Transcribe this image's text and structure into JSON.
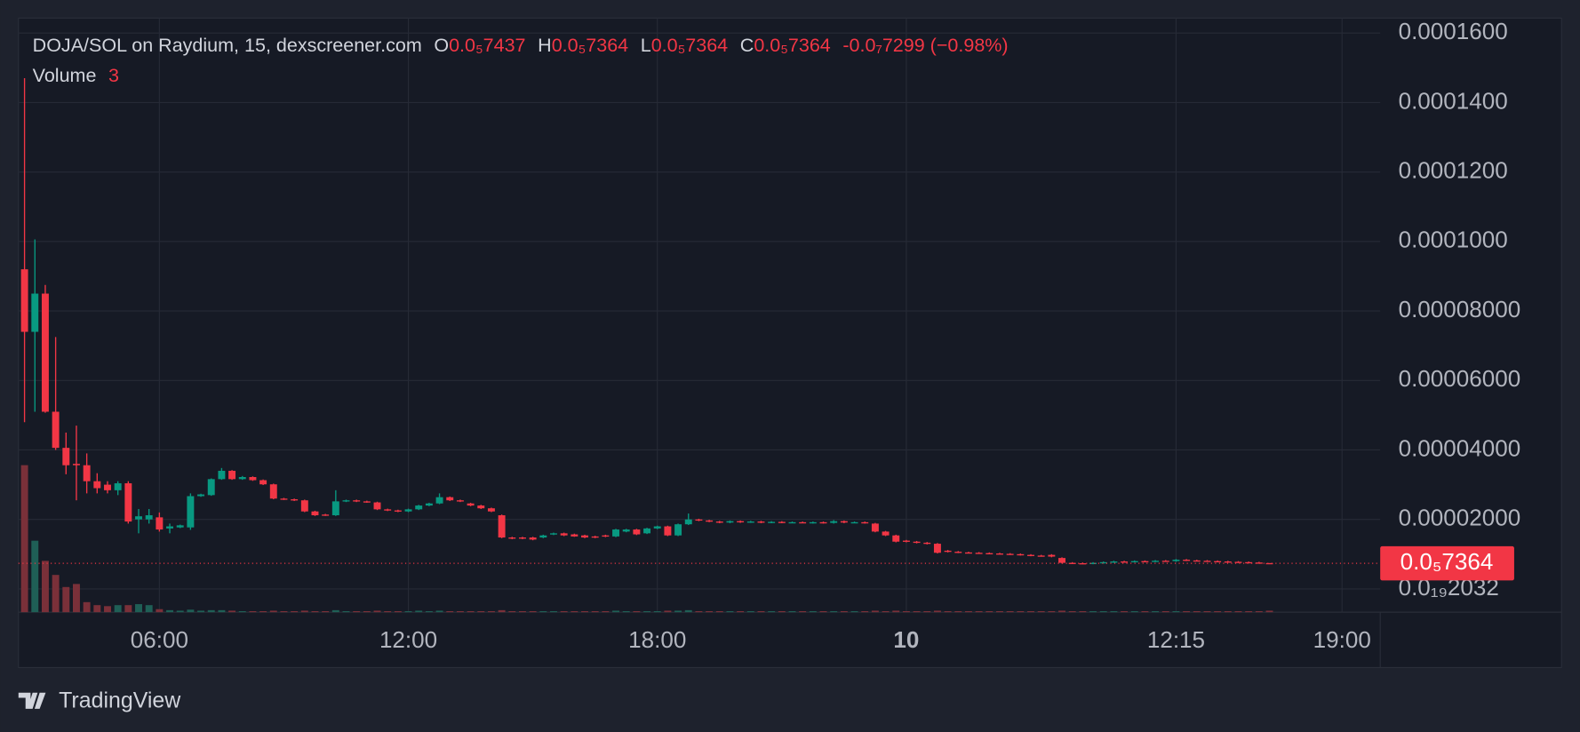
{
  "chart_data": {
    "type": "candlestick",
    "legend": {
      "symbol": "DOJA/SOL on Raydium, 15, dexscreener.com",
      "open_label": "O",
      "open": "0.0₅7437",
      "high_label": "H",
      "high": "0.0₅7364",
      "low_label": "L",
      "low": "0.0₅7364",
      "close_label": "C",
      "close": "0.0₅7364",
      "change": "-0.0₇7299 (−0.98%)"
    },
    "volume_label": "Volume",
    "brand": "TradingView",
    "up_color": "#089981",
    "down_color": "#f23645",
    "up_volume_color": "#1f5f56",
    "down_volume_color": "#7a3039",
    "grid": true,
    "ylim": [
      -6.7e-06,
      0.0001643
    ],
    "yticks": [
      {
        "value": 0.00016,
        "label": "0.0001600"
      },
      {
        "value": 0.00014,
        "label": "0.0001400"
      },
      {
        "value": 0.00012,
        "label": "0.0001200"
      },
      {
        "value": 0.0001,
        "label": "0.0001000"
      },
      {
        "value": 8e-05,
        "label": "0.00008000"
      },
      {
        "value": 6e-05,
        "label": "0.00006000"
      },
      {
        "value": 4e-05,
        "label": "0.00004000"
      },
      {
        "value": 2e-05,
        "label": "0.00002000"
      },
      {
        "value": 2.032e-20,
        "label": "0.0₁₉2032"
      }
    ],
    "last_price": {
      "value": 7.364e-06,
      "label": "0.0₅7364"
    },
    "categories": [
      null,
      null,
      null,
      null,
      null,
      null,
      null,
      null,
      null,
      null,
      null,
      null,
      null,
      "06:00",
      null,
      null,
      null,
      null,
      null,
      null,
      null,
      null,
      null,
      null,
      null,
      null,
      null,
      null,
      null,
      null,
      null,
      null,
      null,
      null,
      null,
      null,
      null,
      "12:00",
      null,
      null,
      null,
      null,
      null,
      null,
      null,
      null,
      null,
      null,
      null,
      null,
      null,
      null,
      null,
      null,
      null,
      null,
      null,
      null,
      null,
      null,
      null,
      "18:00",
      null,
      null,
      null,
      null,
      null,
      null,
      null,
      null,
      null,
      null,
      null,
      null,
      null,
      null,
      null,
      null,
      null,
      null,
      null,
      null,
      null,
      null,
      null,
      "10",
      null,
      null,
      null,
      null,
      null,
      null,
      null,
      null,
      null,
      null,
      null,
      null,
      null,
      null,
      null,
      null,
      null,
      null,
      null,
      null,
      null,
      null,
      null,
      null,
      null,
      "12:15",
      null,
      null,
      null,
      null,
      null,
      null,
      null,
      null,
      null,
      null,
      null,
      null,
      null,
      null,
      null,
      "19:00"
    ],
    "open": [
      9.2e-05,
      7.4e-05,
      8.5e-05,
      5.1e-05,
      4.06e-05,
      3.6e-05,
      3.56e-05,
      3.1e-05,
      3e-05,
      2.84e-05,
      3.04e-05,
      2e-05,
      2e-05,
      2.06e-05,
      1.74e-05,
      1.77e-05,
      1.77e-05,
      2.67e-05,
      2.7e-05,
      3.16e-05,
      3.4e-05,
      3.16e-05,
      3.22e-05,
      3.13e-05,
      3.01e-05,
      2.6e-05,
      2.58e-05,
      2.55e-05,
      2.23e-05,
      2.14e-05,
      2.12e-05,
      2.52e-05,
      2.55e-05,
      2.52e-05,
      2.49e-05,
      2.29e-05,
      2.26e-05,
      2.23e-05,
      2.29e-05,
      2.4e-05,
      2.46e-05,
      2.64e-05,
      2.55e-05,
      2.46e-05,
      2.4e-05,
      2.32e-05,
      2.12e-05,
      1.48e-05,
      1.48e-05,
      1.48e-05,
      1.48e-05,
      1.57e-05,
      1.6e-05,
      1.57e-05,
      1.54e-05,
      1.51e-05,
      1.54e-05,
      1.51e-05,
      1.65e-05,
      1.71e-05,
      1.6e-05,
      1.74e-05,
      1.8e-05,
      1.54e-05,
      1.86e-05,
      2e-05,
      1.97e-05,
      1.94e-05,
      1.91e-05,
      1.95e-05,
      1.92e-05,
      1.94e-05,
      1.91e-05,
      1.93e-05,
      1.91e-05,
      1.92e-05,
      1.9e-05,
      1.92e-05,
      1.9e-05,
      1.95e-05,
      1.91e-05,
      1.92e-05,
      1.88e-05,
      1.65e-05,
      1.54e-05,
      1.39e-05,
      1.36e-05,
      1.33e-05,
      1.3e-05,
      1.1e-05,
      1.07e-05,
      1.05e-05,
      1.04e-05,
      1.03e-05,
      1.02e-05,
      1.01e-05,
      1e-05,
      9.8e-06,
      9.6e-06,
      9.8e-06,
      8.9e-06,
      7.5e-06,
      7.4e-06,
      7.3e-06,
      7.5e-06,
      7.7e-06,
      7.9e-06,
      7.8e-06,
      8e-06,
      7.9e-06,
      8.1e-06,
      8e-06,
      8.4e-06,
      8.2e-06,
      8.1e-06,
      8e-06,
      7.9e-06,
      7.8e-06,
      7.7e-06,
      7.6e-06,
      7.437e-06,
      null,
      null,
      null,
      null,
      null,
      null,
      null
    ],
    "high": [
      0.000147,
      0.0001006,
      8.75e-05,
      7.25e-05,
      4.5e-05,
      4.7e-05,
      3.9e-05,
      3.33e-05,
      3.1e-05,
      3.1e-05,
      3.1e-05,
      2.3e-05,
      2.3e-05,
      2.2e-05,
      1.88e-05,
      1.85e-05,
      2.75e-05,
      2.74e-05,
      3.18e-05,
      3.48e-05,
      3.42e-05,
      3.25e-05,
      3.24e-05,
      3.15e-05,
      3.03e-05,
      2.62e-05,
      2.6e-05,
      2.57e-05,
      2.25e-05,
      2.16e-05,
      2.84e-05,
      2.57e-05,
      2.57e-05,
      2.54e-05,
      2.51e-05,
      2.31e-05,
      2.28e-05,
      2.31e-05,
      2.42e-05,
      2.48e-05,
      2.75e-05,
      2.66e-05,
      2.57e-05,
      2.48e-05,
      2.42e-05,
      2.34e-05,
      2.14e-05,
      1.5e-05,
      1.5e-05,
      1.5e-05,
      1.56e-05,
      1.62e-05,
      1.62e-05,
      1.59e-05,
      1.56e-05,
      1.53e-05,
      1.56e-05,
      1.73e-05,
      1.73e-05,
      1.73e-05,
      1.76e-05,
      1.82e-05,
      1.82e-05,
      1.88e-05,
      2.17e-05,
      2.02e-05,
      1.99e-05,
      1.96e-05,
      1.97e-05,
      1.97e-05,
      1.96e-05,
      1.96e-05,
      1.95e-05,
      1.95e-05,
      1.94e-05,
      1.94e-05,
      1.94e-05,
      1.94e-05,
      1.98e-05,
      1.97e-05,
      1.94e-05,
      1.94e-05,
      1.9e-05,
      1.67e-05,
      1.56e-05,
      1.41e-05,
      1.38e-05,
      1.35e-05,
      1.32e-05,
      1.12e-05,
      1.09e-05,
      1.07e-05,
      1.06e-05,
      1.05e-05,
      1.04e-05,
      1.03e-05,
      1.02e-05,
      1e-05,
      9.8e-06,
      1e-05,
      9.1e-06,
      7.7e-06,
      7.6e-06,
      7.7e-06,
      7.9e-06,
      8.1e-06,
      8.1e-06,
      8.2e-06,
      8.2e-06,
      8.3e-06,
      8.3e-06,
      8.6e-06,
      8.6e-06,
      8.4e-06,
      8.3e-06,
      8.2e-06,
      8.1e-06,
      8e-06,
      7.9e-06,
      7.8e-06,
      7.364e-06,
      null,
      null,
      null,
      null,
      null,
      null,
      null
    ],
    "low": [
      4.8e-05,
      5.1e-05,
      5.07e-05,
      4e-05,
      3.3e-05,
      2.55e-05,
      2.75e-05,
      2.75e-05,
      2.75e-05,
      2.7e-05,
      1.88e-05,
      1.6e-05,
      1.88e-05,
      1.65e-05,
      1.6e-05,
      1.75e-05,
      1.7e-05,
      2.65e-05,
      2.68e-05,
      3.14e-05,
      3.14e-05,
      3.14e-05,
      3.11e-05,
      2.99e-05,
      2.58e-05,
      2.56e-05,
      2.53e-05,
      2.21e-05,
      2.1e-05,
      2.1e-05,
      2.1e-05,
      2.5e-05,
      2.5e-05,
      2.48e-05,
      2.27e-05,
      2.24e-05,
      2.21e-05,
      2.21e-05,
      2.27e-05,
      2.38e-05,
      2.44e-05,
      2.53e-05,
      2.5e-05,
      2.38e-05,
      2.3e-05,
      2.21e-05,
      1.46e-05,
      1.43e-05,
      1.43e-05,
      1.4e-05,
      1.46e-05,
      1.55e-05,
      1.52e-05,
      1.5e-05,
      1.46e-05,
      1.46e-05,
      1.49e-05,
      1.49e-05,
      1.63e-05,
      1.55e-05,
      1.58e-05,
      1.72e-05,
      1.52e-05,
      1.52e-05,
      1.84e-05,
      1.95e-05,
      1.92e-05,
      1.89e-05,
      1.89e-05,
      1.9e-05,
      1.9e-05,
      1.89e-05,
      1.89e-05,
      1.89e-05,
      1.89e-05,
      1.89e-05,
      1.88e-05,
      1.88e-05,
      1.88e-05,
      1.89e-05,
      1.89e-05,
      1.88e-05,
      1.63e-05,
      1.52e-05,
      1.34e-05,
      1.34e-05,
      1.31e-05,
      1.28e-05,
      1.02e-05,
      1.05e-05,
      1.03e-05,
      1.02e-05,
      1.01e-05,
      1e-05,
      9.9e-06,
      9.8e-06,
      9.6e-06,
      9.4e-06,
      9.3e-06,
      9.1e-06,
      7.3e-06,
      7.2e-06,
      7.1e-06,
      7.1e-06,
      7.3e-06,
      7.5e-06,
      7.6e-06,
      7.6e-06,
      7.7e-06,
      7.7e-06,
      7.8e-06,
      7.8e-06,
      8e-06,
      7.9e-06,
      7.8e-06,
      7.7e-06,
      7.6e-06,
      7.5e-06,
      7.4e-06,
      7.3e-06,
      7.364e-06,
      null,
      null,
      null,
      null,
      null,
      null,
      null
    ],
    "close": [
      7.4e-05,
      8.5e-05,
      5.1e-05,
      4.06e-05,
      3.56e-05,
      3.56e-05,
      3.1e-05,
      2.9e-05,
      2.84e-05,
      3.04e-05,
      1.94e-05,
      2.09e-05,
      2.12e-05,
      1.71e-05,
      1.8e-05,
      1.83e-05,
      2.67e-05,
      2.72e-05,
      3.16e-05,
      3.4e-05,
      3.16e-05,
      3.22e-05,
      3.13e-05,
      3.01e-05,
      2.6e-05,
      2.58e-05,
      2.55e-05,
      2.23e-05,
      2.12e-05,
      2.12e-05,
      2.52e-05,
      2.55e-05,
      2.52e-05,
      2.5e-05,
      2.29e-05,
      2.26e-05,
      2.23e-05,
      2.29e-05,
      2.4e-05,
      2.46e-05,
      2.64e-05,
      2.55e-05,
      2.52e-05,
      2.4e-05,
      2.32e-05,
      2.23e-05,
      1.48e-05,
      1.45e-05,
      1.45e-05,
      1.42e-05,
      1.54e-05,
      1.6e-05,
      1.54e-05,
      1.51e-05,
      1.48e-05,
      1.48e-05,
      1.51e-05,
      1.71e-05,
      1.71e-05,
      1.57e-05,
      1.74e-05,
      1.8e-05,
      1.54e-05,
      1.86e-05,
      2e-05,
      1.97e-05,
      1.94e-05,
      1.91e-05,
      1.95e-05,
      1.92e-05,
      1.94e-05,
      1.91e-05,
      1.93e-05,
      1.91e-05,
      1.92e-05,
      1.9e-05,
      1.92e-05,
      1.9e-05,
      1.95e-05,
      1.91e-05,
      1.92e-05,
      1.89e-05,
      1.65e-05,
      1.54e-05,
      1.36e-05,
      1.36e-05,
      1.33e-05,
      1.3e-05,
      1.04e-05,
      1.07e-05,
      1.05e-05,
      1.04e-05,
      1.03e-05,
      1.02e-05,
      1.01e-05,
      1e-05,
      9.8e-06,
      9.6e-06,
      9.5e-06,
      9.3e-06,
      7.5e-06,
      7.4e-06,
      7.3e-06,
      7.5e-06,
      7.7e-06,
      7.9e-06,
      7.8e-06,
      8e-06,
      7.9e-06,
      8.1e-06,
      8e-06,
      8.4e-06,
      8.2e-06,
      8.1e-06,
      8e-06,
      7.9e-06,
      7.8e-06,
      7.7e-06,
      7.6e-06,
      7.5e-06,
      7.364e-06,
      null,
      null,
      null,
      null,
      null,
      null,
      null
    ],
    "volume": [
      292,
      142,
      102,
      74,
      50,
      56,
      20,
      14,
      12,
      14,
      14,
      16,
      14,
      6,
      4,
      3,
      5,
      3,
      4,
      4,
      3,
      2,
      2,
      2,
      3,
      2,
      2,
      3,
      2,
      2,
      4,
      2,
      2,
      2,
      3,
      2,
      2,
      2,
      3,
      2,
      3,
      2,
      2,
      2,
      2,
      2,
      4,
      2,
      2,
      2,
      2,
      2,
      2,
      2,
      2,
      2,
      2,
      3,
      2,
      2,
      2,
      2,
      3,
      3,
      4,
      2,
      2,
      2,
      2,
      2,
      2,
      2,
      2,
      2,
      2,
      2,
      2,
      2,
      2,
      2,
      2,
      2,
      3,
      2,
      3,
      2,
      2,
      2,
      3,
      2,
      2,
      2,
      2,
      2,
      2,
      2,
      2,
      2,
      2,
      2,
      3,
      2,
      2,
      2,
      2,
      2,
      2,
      2,
      2,
      2,
      2,
      2,
      2,
      2,
      2,
      2,
      2,
      2,
      2,
      2,
      3,
      null,
      null,
      null,
      null,
      null,
      null,
      null
    ]
  }
}
